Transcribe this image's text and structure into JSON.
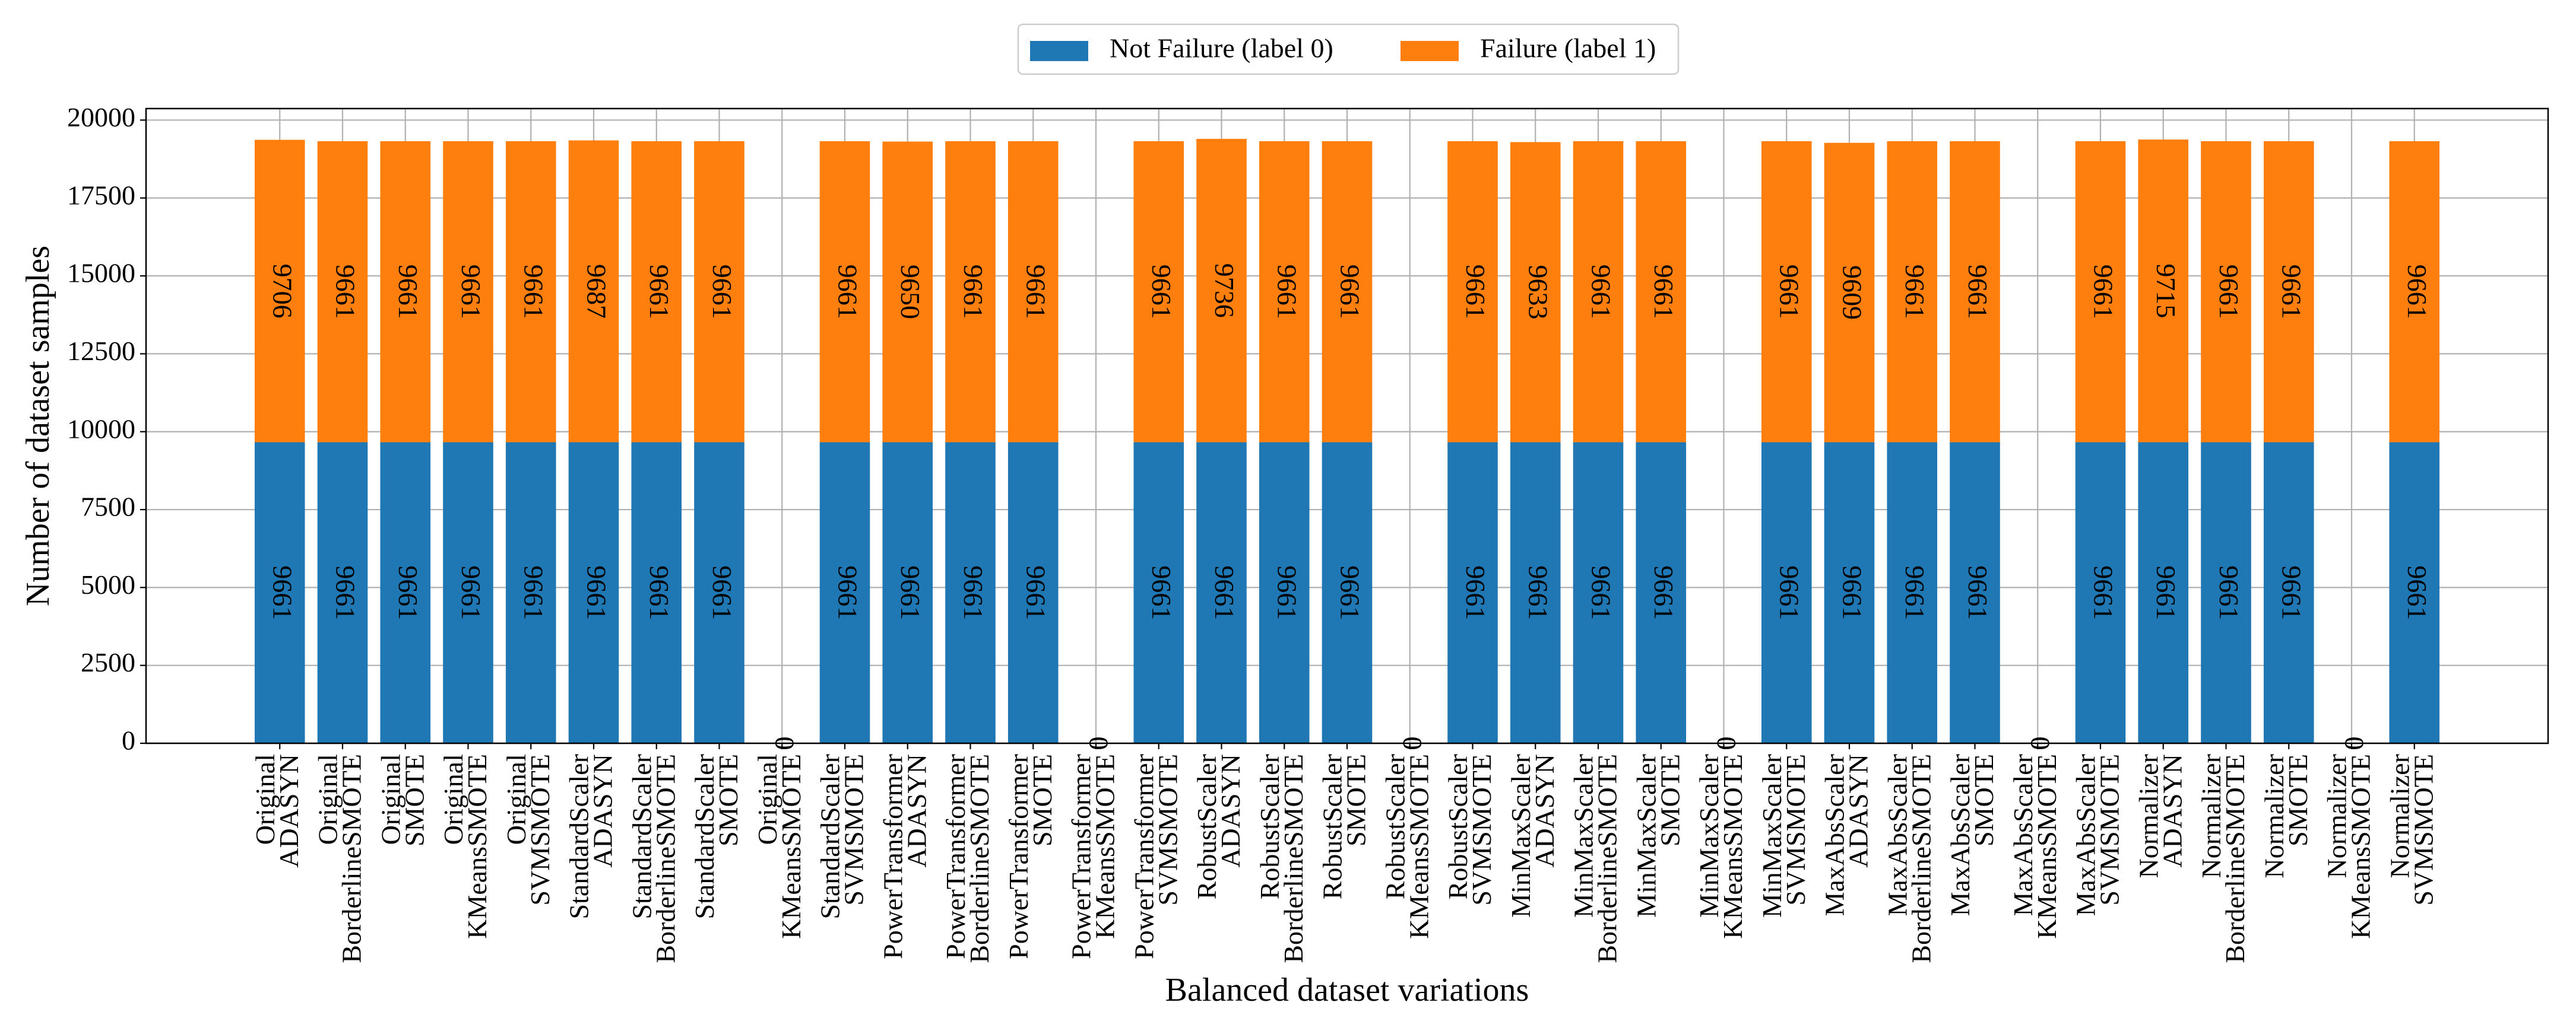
{
  "chart_data": {
    "type": "stacked_bar",
    "x_label": "Balanced dataset variations",
    "y_label": "Number of dataset samples",
    "categories": [
      [
        "Original",
        "ADASYN"
      ],
      [
        "Original",
        "BorderlineSMOTE"
      ],
      [
        "Original",
        "SMOTE"
      ],
      [
        "Original",
        "KMeansSMOTE"
      ],
      [
        "Original",
        "SVMSMOTE"
      ],
      [
        "StandardScaler",
        "ADASYN"
      ],
      [
        "StandardScaler",
        "BorderlineSMOTE"
      ],
      [
        "StandardScaler",
        "SMOTE"
      ],
      [
        "Original",
        "KMeansSMOTE"
      ],
      [
        "StandardScaler",
        "SVMSMOTE"
      ],
      [
        "PowerTransformer",
        "ADASYN"
      ],
      [
        "PowerTransformer",
        "BorderlineSMOTE"
      ],
      [
        "PowerTransformer",
        "SMOTE"
      ],
      [
        "PowerTransformer",
        "KMeansSMOTE"
      ],
      [
        "PowerTransformer",
        "SVMSMOTE"
      ],
      [
        "RobustScaler",
        "ADASYN"
      ],
      [
        "RobustScaler",
        "BorderlineSMOTE"
      ],
      [
        "RobustScaler",
        "SMOTE"
      ],
      [
        "RobustScaler",
        "KMeansSMOTE"
      ],
      [
        "RobustScaler",
        "SVMSMOTE"
      ],
      [
        "MinMaxScaler",
        "ADASYN"
      ],
      [
        "MinMaxScaler",
        "BorderlineSMOTE"
      ],
      [
        "MinMaxScaler",
        "SMOTE"
      ],
      [
        "MinMaxScaler",
        "KMeansSMOTE"
      ],
      [
        "MinMaxScaler",
        "SVMSMOTE"
      ],
      [
        "MaxAbsScaler",
        "ADASYN"
      ],
      [
        "MaxAbsScaler",
        "BorderlineSMOTE"
      ],
      [
        "MaxAbsScaler",
        "SMOTE"
      ],
      [
        "MaxAbsScaler",
        "KMeansSMOTE"
      ],
      [
        "MaxAbsScaler",
        "SVMSMOTE"
      ],
      [
        "Normalizer",
        "ADASYN"
      ],
      [
        "Normalizer",
        "BorderlineSMOTE"
      ],
      [
        "Normalizer",
        "SMOTE"
      ],
      [
        "Normalizer",
        "KMeansSMOTE"
      ],
      [
        "Normalizer",
        "SVMSMOTE"
      ]
    ],
    "series": [
      {
        "name": "Not Failure (label 0)",
        "color": "#1f77b4",
        "values": [
          9661,
          9661,
          9661,
          9661,
          9661,
          9661,
          9661,
          9661,
          0,
          9661,
          9661,
          9661,
          9661,
          0,
          9661,
          9661,
          9661,
          9661,
          0,
          9661,
          9661,
          9661,
          9661,
          0,
          9661,
          9661,
          9661,
          9661,
          0,
          9661,
          9661,
          9661,
          9661,
          0,
          9661
        ]
      },
      {
        "name": "Failure (label 1)",
        "color": "#ff7f0e",
        "values": [
          9706,
          9661,
          9661,
          9661,
          9661,
          9687,
          9661,
          9661,
          0,
          9661,
          9650,
          9661,
          9661,
          0,
          9661,
          9736,
          9661,
          9661,
          0,
          9661,
          9633,
          9661,
          9661,
          0,
          9661,
          9609,
          9661,
          9661,
          0,
          9661,
          9715,
          9661,
          9661,
          0,
          9661
        ]
      }
    ],
    "ylim": [
      0,
      20370
    ],
    "yticks": [
      0,
      2500,
      5000,
      7500,
      10000,
      12500,
      15000,
      17500,
      20000
    ],
    "grid": true,
    "legend": "upper center"
  }
}
